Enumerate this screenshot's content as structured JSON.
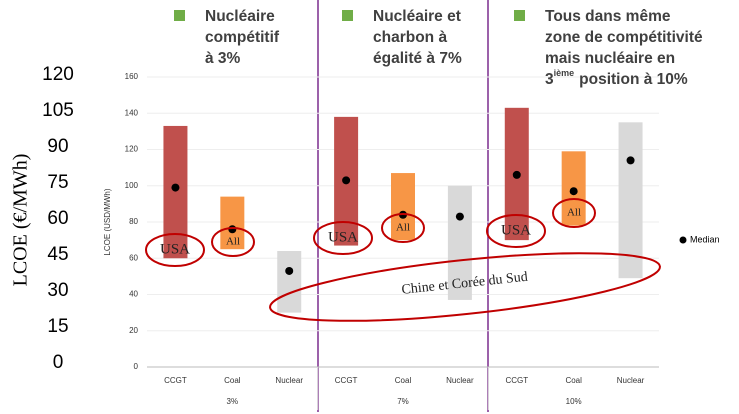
{
  "chart_data": {
    "type": "range_bar",
    "y_label": "LCOE (USD/MWh)",
    "y2_label": "LCOE (€/MWh)",
    "categories": [
      "CCGT",
      "Coal",
      "Nuclear"
    ],
    "colors": [
      "#c0504d",
      "#f79646",
      "#d9d9d9"
    ],
    "median_color": "#000000",
    "median_label": "Median",
    "groups": [
      {
        "label": "3%",
        "low": [
          60,
          65,
          30
        ],
        "high": [
          133,
          94,
          64
        ],
        "median": [
          99,
          76,
          53
        ]
      },
      {
        "label": "7%",
        "low": [
          67,
          70,
          37
        ],
        "high": [
          138,
          107,
          100
        ],
        "median": [
          103,
          84,
          83
        ]
      },
      {
        "label": "10%",
        "low": [
          70,
          78,
          49
        ],
        "high": [
          143,
          119,
          135
        ],
        "median": [
          106,
          97,
          114
        ]
      }
    ],
    "ylim": [
      0,
      160
    ],
    "yticks": [
      0,
      20,
      40,
      60,
      80,
      100,
      120,
      140,
      160
    ],
    "y2lim": [
      0,
      120
    ],
    "y2ticks": [
      0,
      15,
      30,
      45,
      60,
      75,
      90,
      105,
      120
    ],
    "grid": true,
    "headers": [
      {
        "lines": [
          "Nucléaire",
          "compétitif",
          "à 3%"
        ]
      },
      {
        "lines": [
          "Nucléaire et",
          "charbon à",
          "égalité à 7%"
        ]
      },
      {
        "lines": [
          "Tous dans même",
          "zone de compétitivité",
          "mais nucléaire en"
        ],
        "sup_line": [
          "3",
          "ième",
          "position à 10%"
        ]
      }
    ],
    "annotations": [
      "USA",
      "All",
      "USA",
      "All",
      "USA",
      "All",
      "Chine et Corée du Sud"
    ]
  }
}
